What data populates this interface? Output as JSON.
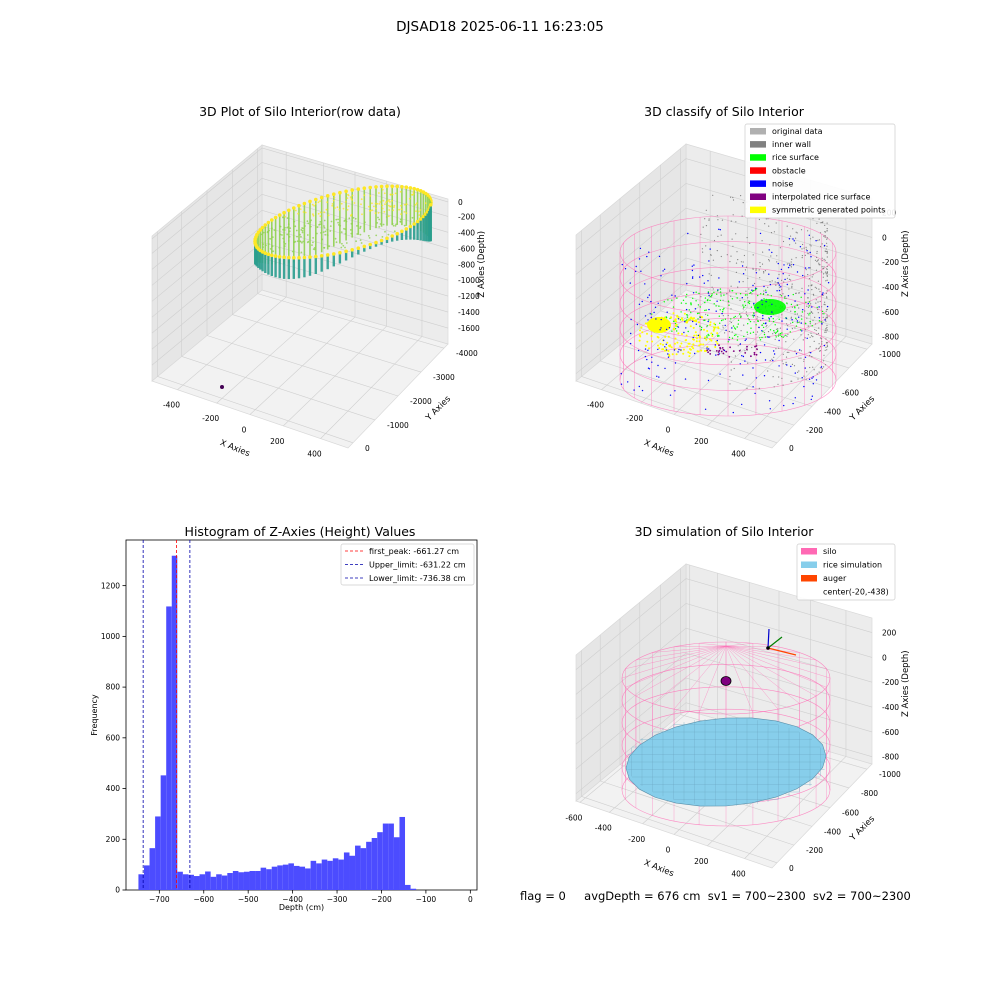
{
  "figure": {
    "suptitle": "DJSAD18 2025-06-11 16:23:05",
    "footer": {
      "flag": "flag = 0",
      "avg": "avgDepth = 676 cm",
      "sv1": "sv1 = 700~2300",
      "sv2": "sv2 = 700~2300"
    }
  },
  "chart_data": [
    {
      "type": "scatter3d",
      "title": "3D Plot of Silo Interior(row data)",
      "xlabel": "X Axies",
      "ylabel": "Y Axies",
      "zlabel": "Z Axies (Depth)",
      "x_ticks": [
        "-400",
        "-200",
        "0",
        "200",
        "400"
      ],
      "y_ticks": [
        "0",
        "-1000",
        "-2000",
        "-3000",
        "-4000"
      ],
      "z_ticks": [
        "0",
        "-200",
        "-400",
        "-600",
        "-800",
        "-1000",
        "-1200",
        "-1400",
        "-1600"
      ],
      "colormap": "viridis",
      "colors": [
        "#2a9d8f",
        "#8fd14f",
        "#fde725"
      ]
    },
    {
      "type": "scatter3d",
      "title": "3D classify of Silo Interior",
      "xlabel": "X Axies",
      "ylabel": "Y Axies",
      "zlabel": "Z Axies (Depth)",
      "x_ticks": [
        "-400",
        "-200",
        "0",
        "200",
        "400"
      ],
      "y_ticks": [
        "0",
        "-200",
        "-400",
        "-600",
        "-800",
        "-1000"
      ],
      "z_ticks": [
        "200",
        "0",
        "-200",
        "-400",
        "-600",
        "-800"
      ],
      "legend_position": "top-right",
      "legend": [
        {
          "label": "original data",
          "color": "#b0b0b0"
        },
        {
          "label": "inner wall",
          "color": "#808080"
        },
        {
          "label": "rice surface",
          "color": "#00ff00"
        },
        {
          "label": "obstacle",
          "color": "#ff0000"
        },
        {
          "label": "noise",
          "color": "#0000ff"
        },
        {
          "label": "interpolated rice surface",
          "color": "#800080"
        },
        {
          "label": "symmetric generated points",
          "color": "#ffff00"
        }
      ]
    },
    {
      "type": "bar",
      "title": "Histogram of Z-Axies (Height) Values",
      "xlabel": "Depth (cm)",
      "ylabel": "Frequency",
      "xlim": [
        -775,
        15
      ],
      "ylim": [
        0,
        1380
      ],
      "x_ticks": [
        -700,
        -600,
        -500,
        -400,
        -300,
        -200,
        -100,
        0
      ],
      "y_ticks": [
        0,
        200,
        400,
        600,
        800,
        1000,
        1200
      ],
      "bin_start": -747,
      "bin_width": 12.5,
      "values": [
        62,
        97,
        165,
        290,
        452,
        1118,
        1318,
        72,
        62,
        60,
        55,
        62,
        73,
        52,
        62,
        57,
        67,
        75,
        70,
        72,
        75,
        75,
        88,
        82,
        92,
        97,
        100,
        105,
        95,
        92,
        85,
        115,
        105,
        120,
        115,
        125,
        120,
        148,
        135,
        175,
        165,
        190,
        205,
        228,
        262,
        262,
        208,
        288,
        20,
        5
      ],
      "bar_color": "#4c4cff",
      "vlines": [
        {
          "label": "first_peak: -661.27 cm",
          "x": -661.27,
          "color": "#ff0000"
        },
        {
          "label": "Upper_limit: -631.22 cm",
          "x": -631.22,
          "color": "#0000aa"
        },
        {
          "label": "Lower_limit: -736.38 cm",
          "x": -736.38,
          "color": "#0000aa"
        }
      ],
      "legend_position": "top-right"
    },
    {
      "type": "surface3d",
      "title": "3D simulation of Silo Interior",
      "xlabel": "X Axies",
      "ylabel": "Y Axies",
      "zlabel": "Z Axies (Depth)",
      "x_ticks": [
        "-600",
        "-400",
        "-200",
        "0",
        "200",
        "400"
      ],
      "y_ticks": [
        "0",
        "-200",
        "-400",
        "-600",
        "-800",
        "-1000"
      ],
      "z_ticks": [
        "200",
        "0",
        "-200",
        "-400",
        "-600",
        "-800"
      ],
      "legend_position": "top-right",
      "legend": [
        {
          "label": "silo",
          "color": "#ff69b4"
        },
        {
          "label": "rice simulation",
          "color": "#87ceeb"
        },
        {
          "label": "auger",
          "color": "#ff4500"
        },
        {
          "label": "center(-20,-438)",
          "color": ""
        }
      ]
    }
  ]
}
